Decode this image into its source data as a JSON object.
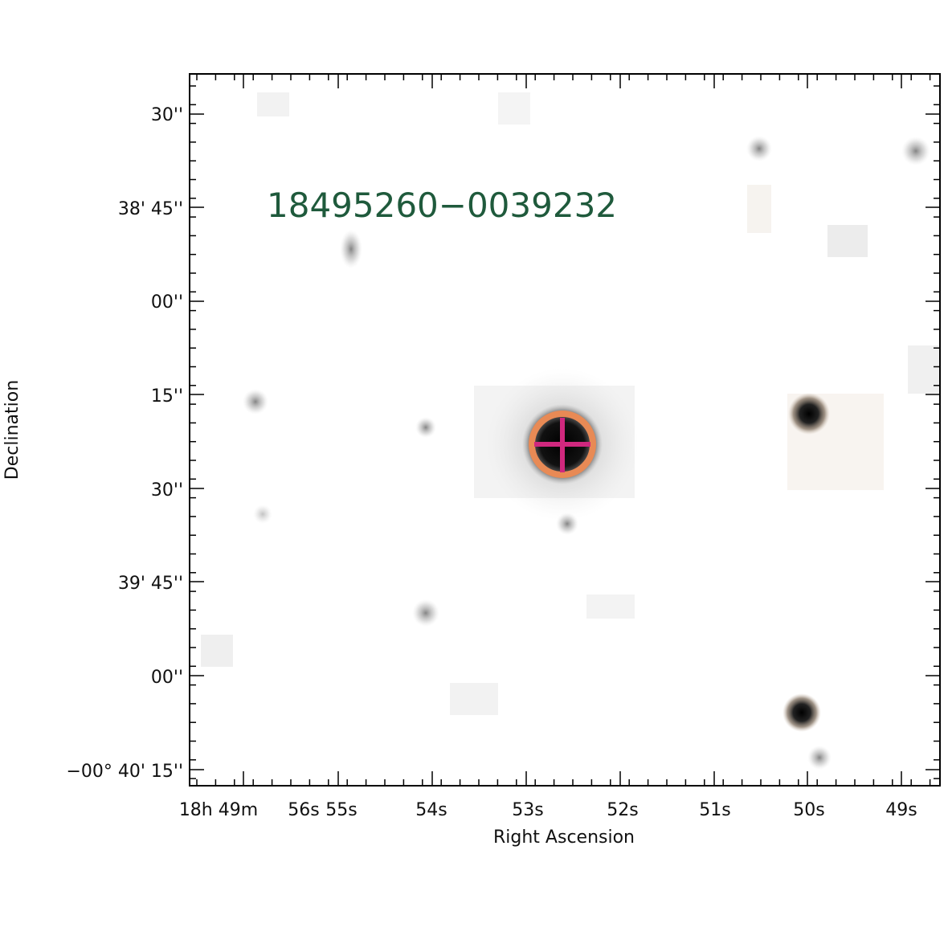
{
  "image": {
    "title": "18495260−0039232",
    "title_color": "#1f5a3c",
    "marker_circle_color": "#e88a55",
    "marker_cross_color": "#d0287e"
  },
  "axes": {
    "xlabel": "Right Ascension",
    "ylabel": "Declination",
    "dec_ticks": [
      {
        "text": "30''"
      },
      {
        "text": "38' 45''"
      },
      {
        "text": "00''"
      },
      {
        "text": "15''"
      },
      {
        "text": "30''"
      },
      {
        "text": "39' 45''"
      },
      {
        "text": "00''"
      },
      {
        "text": "−00° 40' 15''"
      }
    ],
    "ra_ticks": [
      {
        "text": "18h 49m"
      },
      {
        "text": "56s"
      },
      {
        "text": "55s"
      },
      {
        "text": "54s"
      },
      {
        "text": "53s"
      },
      {
        "text": "52s"
      },
      {
        "text": "51s"
      },
      {
        "text": "50s"
      },
      {
        "text": "49s"
      }
    ]
  }
}
